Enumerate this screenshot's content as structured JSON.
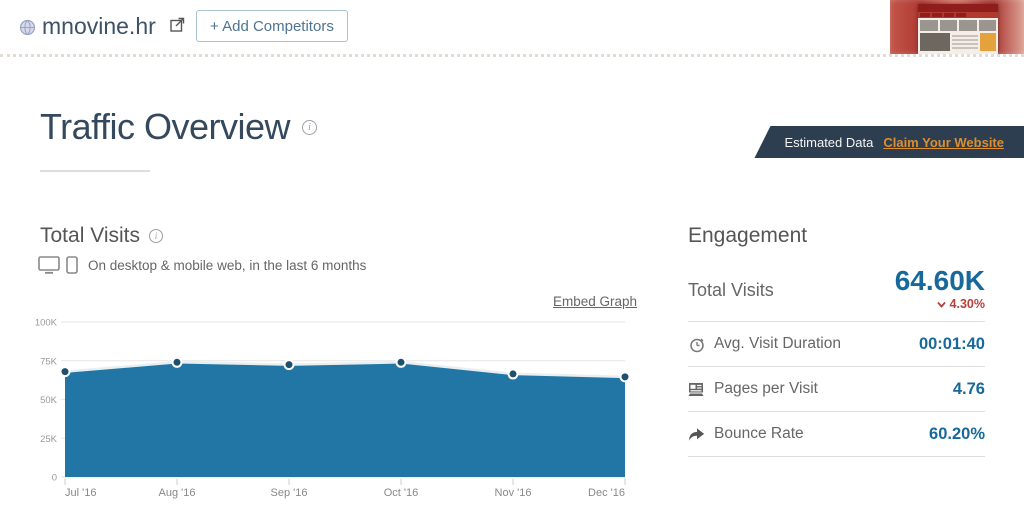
{
  "header": {
    "site_name": "mnovine.hr",
    "add_competitors_label": "+ Add Competitors"
  },
  "page": {
    "title": "Traffic Overview",
    "estimated_banner": {
      "text": "Estimated Data",
      "link_label": "Claim Your Website"
    }
  },
  "total_visits_section": {
    "title": "Total Visits",
    "subtitle": "On desktop & mobile web, in the last 6 months",
    "embed_link_label": "Embed Graph"
  },
  "engagement": {
    "title": "Engagement",
    "rows": [
      {
        "label": "Total Visits",
        "value": "64.60K",
        "change": "4.30%",
        "change_direction": "down"
      },
      {
        "label": "Avg. Visit Duration",
        "value": "00:01:40"
      },
      {
        "label": "Pages per Visit",
        "value": "4.76"
      },
      {
        "label": "Bounce Rate",
        "value": "60.20%"
      }
    ]
  },
  "chart_data": {
    "type": "area",
    "title": "Total Visits",
    "x": [
      "Jul '16",
      "Aug '16",
      "Sep '16",
      "Oct '16",
      "Nov '16",
      "Dec '16"
    ],
    "series": [
      {
        "name": "Total Visits",
        "values": [
          68000,
          74000,
          72500,
          74000,
          66500,
          64600
        ]
      }
    ],
    "ylim": [
      0,
      100000
    ],
    "ytick_values": [
      0,
      25000,
      50000,
      75000,
      100000
    ],
    "ytick_labels": [
      "0",
      "25K",
      "50K",
      "75K",
      "100K"
    ],
    "grid": "horizontal",
    "legend": "none",
    "xlabel": "",
    "ylabel": ""
  },
  "colors": {
    "area_fill": "#2176a5",
    "line": "#e9eef1",
    "marker": "#1d4f6e",
    "gridline": "#e6e6e6",
    "axis_text": "#999999",
    "banner_bg": "#2d3e50",
    "banner_link": "#dd8e2e",
    "metric_value": "#17689b",
    "negative_change": "#b5403c",
    "title_text": "#34495e"
  },
  "icons": {
    "globe-icon": "site favicon globe",
    "external-link-icon": "open site in new window",
    "info-icon": "circled i tooltip",
    "desktop-icon": "desktop monitor",
    "mobile-icon": "mobile phone",
    "stopwatch-icon": "avg visit duration",
    "pages-icon": "pages per visit",
    "bounce-arrow-icon": "bounce rate",
    "chevron-down-icon": "decrease indicator"
  }
}
